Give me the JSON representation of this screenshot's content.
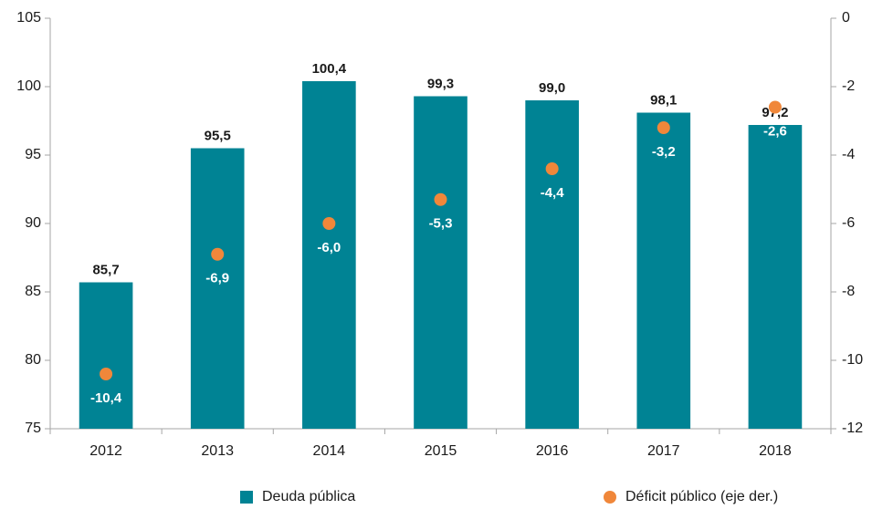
{
  "chart_data": {
    "type": "bar",
    "categories": [
      "2012",
      "2013",
      "2014",
      "2015",
      "2016",
      "2017",
      "2018"
    ],
    "series": [
      {
        "name": "Deuda pública",
        "type": "bar",
        "color": "#008394",
        "values": [
          85.7,
          95.5,
          100.4,
          99.3,
          99.0,
          98.1,
          97.2
        ],
        "value_labels": [
          "85,7",
          "95,5",
          "100,4",
          "99,3",
          "99,0",
          "98,1",
          "97,2"
        ]
      },
      {
        "name": "Déficit público (eje der.)",
        "type": "scatter",
        "axis": "y2",
        "color": "#f0873a",
        "values": [
          -10.4,
          -6.9,
          -6.0,
          -5.3,
          -4.4,
          -3.2,
          -2.6
        ],
        "value_labels": [
          "-10,4",
          "-6,9",
          "-6,0",
          "-5,3",
          "-4,4",
          "-3,2",
          "-2,6"
        ]
      }
    ],
    "ylim": [
      75,
      105
    ],
    "yticks": [
      75,
      80,
      85,
      90,
      95,
      100,
      105
    ],
    "y2lim": [
      -12,
      0
    ],
    "y2ticks": [
      -12,
      -10,
      -8,
      -6,
      -4,
      -2,
      0
    ],
    "grid": false,
    "legend": "bottom"
  }
}
